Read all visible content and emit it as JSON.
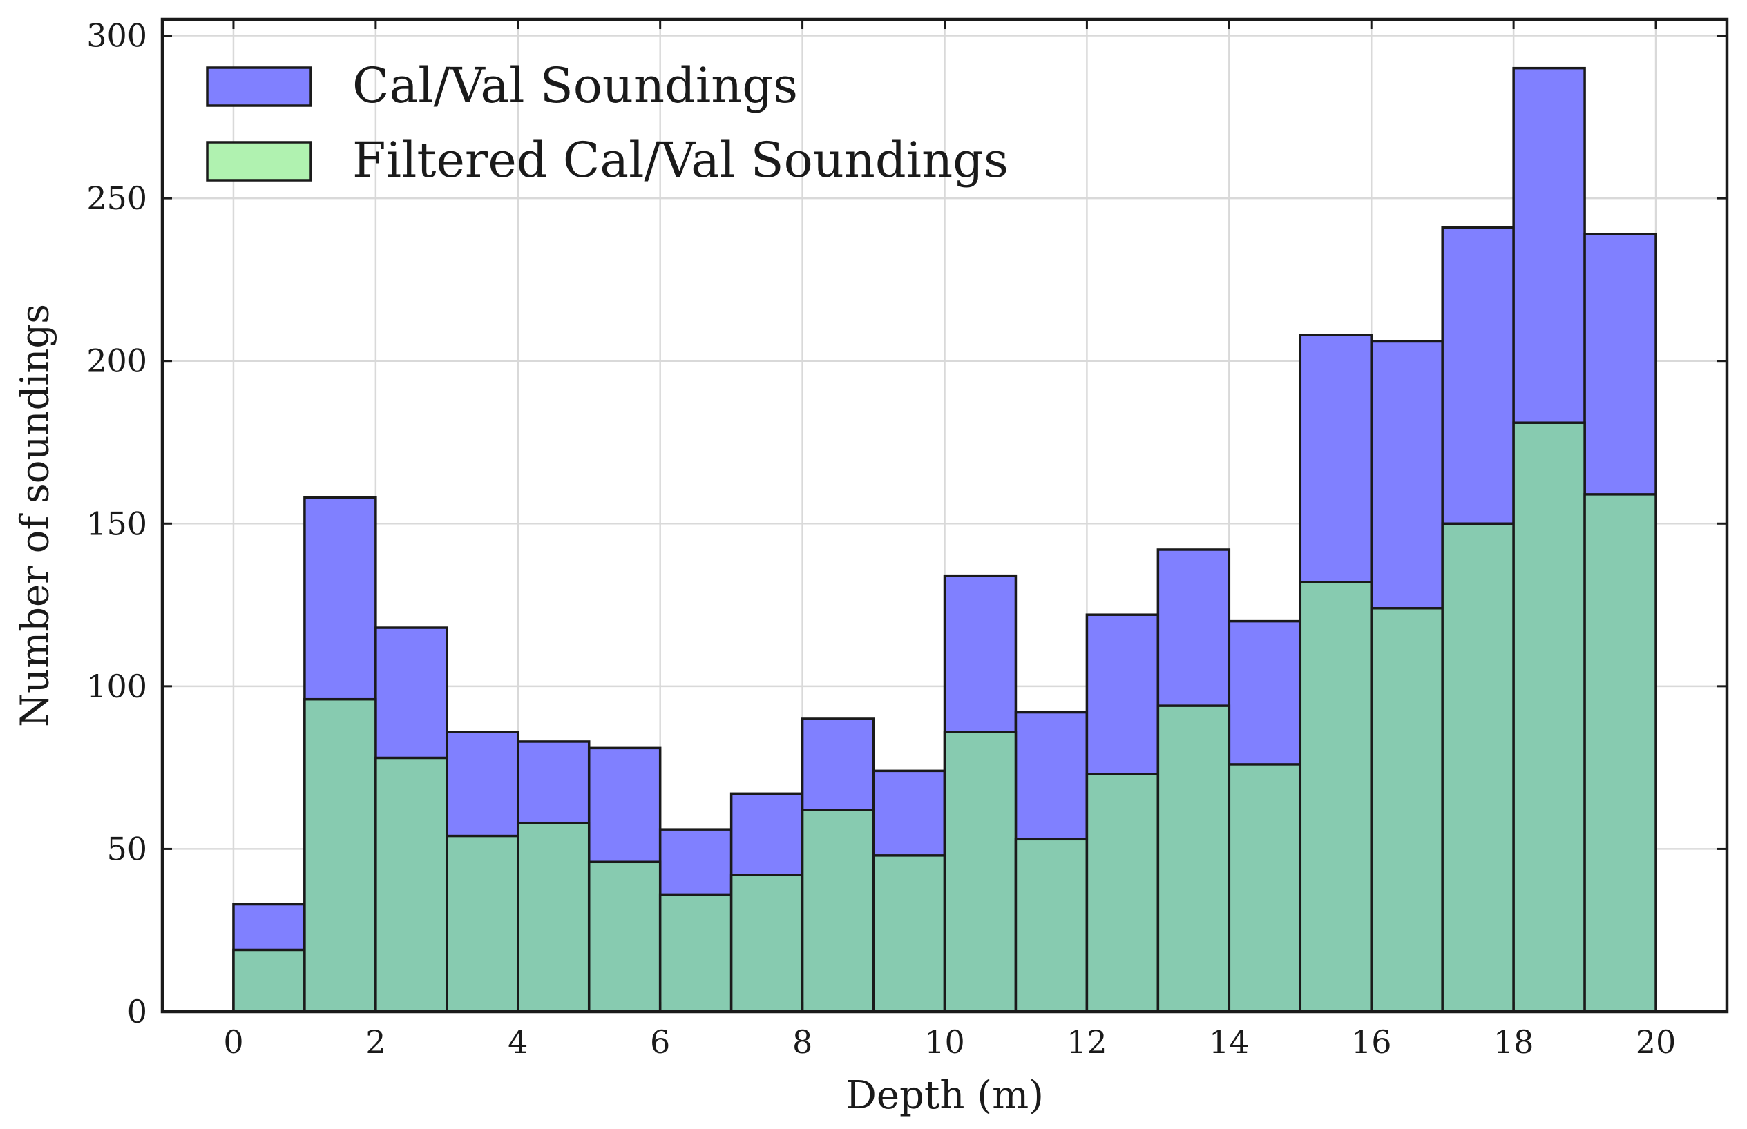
{
  "chart_data": {
    "type": "bar",
    "xlabel": "Depth (m)",
    "ylabel": "Number of soundings",
    "xlim": [
      -1,
      21
    ],
    "ylim": [
      0,
      305
    ],
    "bin_width": 1,
    "bins": [
      0,
      1,
      2,
      3,
      4,
      5,
      6,
      7,
      8,
      9,
      10,
      11,
      12,
      13,
      14,
      15,
      16,
      17,
      18,
      19
    ],
    "x_ticks": [
      0,
      2,
      4,
      6,
      8,
      10,
      12,
      14,
      16,
      18,
      20
    ],
    "y_ticks": [
      0,
      50,
      100,
      150,
      200,
      250,
      300
    ],
    "grid": true,
    "legend_position": "top-left",
    "series": [
      {
        "name": "Cal/Val Soundings",
        "color": "#8080ff",
        "values": [
          33,
          158,
          118,
          86,
          83,
          81,
          56,
          67,
          90,
          74,
          134,
          92,
          122,
          142,
          120,
          208,
          206,
          241,
          290,
          239
        ]
      },
      {
        "name": "Filtered Cal/Val Soundings",
        "color": "#87cbb0",
        "legend_color": "#b0f2b0",
        "values": [
          19,
          96,
          78,
          54,
          58,
          46,
          36,
          42,
          62,
          48,
          86,
          53,
          73,
          94,
          76,
          132,
          124,
          150,
          181,
          159
        ]
      }
    ]
  }
}
